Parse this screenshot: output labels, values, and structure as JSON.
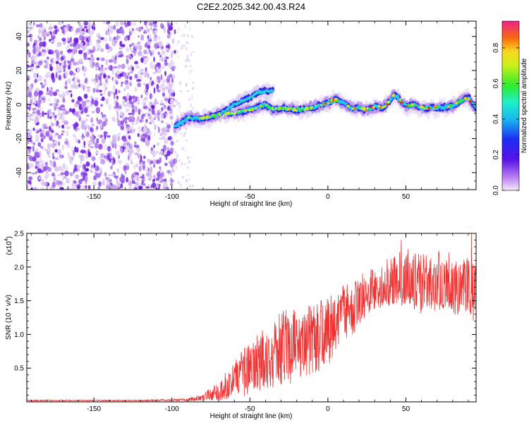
{
  "title": "C2E2.2025.342.00.43.R24",
  "colorbar": {
    "label": "Normalized spectral amplitude",
    "ticks": [
      "0.0",
      "0.2",
      "0.4",
      "0.6",
      "0.8"
    ],
    "range": [
      0,
      0.95
    ]
  },
  "chart_data": [
    {
      "type": "heatmap",
      "title": "C2E2.2025.342.00.43.R24",
      "xlabel": "Height of straight line (km)",
      "ylabel": "Frequency (Hz)",
      "xlim": [
        -193,
        95
      ],
      "ylim": [
        -50,
        49
      ],
      "xticks": [
        -150,
        -100,
        -50,
        0,
        50
      ],
      "yticks": [
        -40,
        -20,
        0,
        20,
        40
      ],
      "xtick_labels": [
        "-150",
        "-100",
        "-50",
        "0",
        "50"
      ],
      "ytick_labels": [
        "-40",
        "-20",
        "0",
        "20",
        "40"
      ],
      "noise_region_km": [
        -193,
        -98
      ],
      "ridge": {
        "description": "Frequency of peak spectral amplitude vs height",
        "x": [
          -98,
          -90,
          -80,
          -70,
          -60,
          -50,
          -40,
          -35,
          -30,
          -20,
          -10,
          0,
          5,
          10,
          15,
          20,
          25,
          30,
          35,
          40,
          42,
          45,
          50,
          55,
          60,
          70,
          80,
          85,
          90,
          95
        ],
        "y": [
          -13,
          -8,
          -8,
          -6,
          -5,
          -3,
          0,
          -3,
          -2,
          -3,
          -2,
          1,
          3,
          1,
          -2,
          -2,
          -3,
          -1,
          -2,
          2,
          6,
          4,
          -1,
          0,
          -2,
          -2,
          -1,
          2,
          4,
          -2
        ]
      },
      "secondary_branch": {
        "x": [
          -70,
          -60,
          -50,
          -45,
          -40,
          -35
        ],
        "y": [
          -6,
          0,
          4,
          7,
          8,
          8
        ]
      }
    },
    {
      "type": "line",
      "xlabel": "Height of straight line (km)",
      "ylabel": "SNR (10 * v/v)",
      "yscale_label": "(x10",
      "yscale_exp": "4",
      "yscale_close": ")",
      "xlim": [
        -193,
        95
      ],
      "ylim": [
        0,
        2.5
      ],
      "xticks": [
        -150,
        -100,
        -50,
        0,
        50
      ],
      "yticks": [
        0.5,
        1.0,
        1.5,
        2.0,
        2.5
      ],
      "xtick_labels": [
        "-150",
        "-100",
        "-50",
        "0",
        "50"
      ],
      "ytick_labels": [
        "0.5",
        "1.0",
        "1.5",
        "2.0",
        "2.5"
      ],
      "series": [
        {
          "name": "SNR",
          "color": "#ee3333",
          "description": "Noisy SNR trace; envelope values below (units x10^4)",
          "x": [
            -193,
            -120,
            -90,
            -80,
            -70,
            -60,
            -50,
            -40,
            -30,
            -20,
            -10,
            0,
            10,
            20,
            30,
            40,
            50,
            60,
            70,
            80,
            95
          ],
          "mean": [
            0.02,
            0.02,
            0.03,
            0.05,
            0.12,
            0.3,
            0.45,
            0.6,
            0.75,
            0.85,
            0.95,
            1.1,
            1.3,
            1.5,
            1.65,
            1.7,
            1.72,
            1.7,
            1.7,
            1.68,
            1.65
          ],
          "upper": [
            0.03,
            0.03,
            0.05,
            0.12,
            0.3,
            0.6,
            0.9,
            1.1,
            1.35,
            1.4,
            1.45,
            1.55,
            1.75,
            1.9,
            2.0,
            2.15,
            2.3,
            2.2,
            2.25,
            2.2,
            2.1
          ],
          "lower": [
            0.01,
            0.01,
            0.01,
            0.02,
            0.02,
            0.05,
            0.1,
            0.15,
            0.2,
            0.3,
            0.4,
            0.55,
            0.8,
            1.1,
            1.35,
            1.4,
            1.45,
            1.3,
            1.35,
            1.25,
            1.2
          ],
          "spikes": [
            {
              "x": 7,
              "y": 1.45
            },
            {
              "x": 43,
              "y": 2.1
            },
            {
              "x": 47,
              "y": 2.4
            },
            {
              "x": 92,
              "y": 2.5
            }
          ]
        }
      ]
    }
  ]
}
